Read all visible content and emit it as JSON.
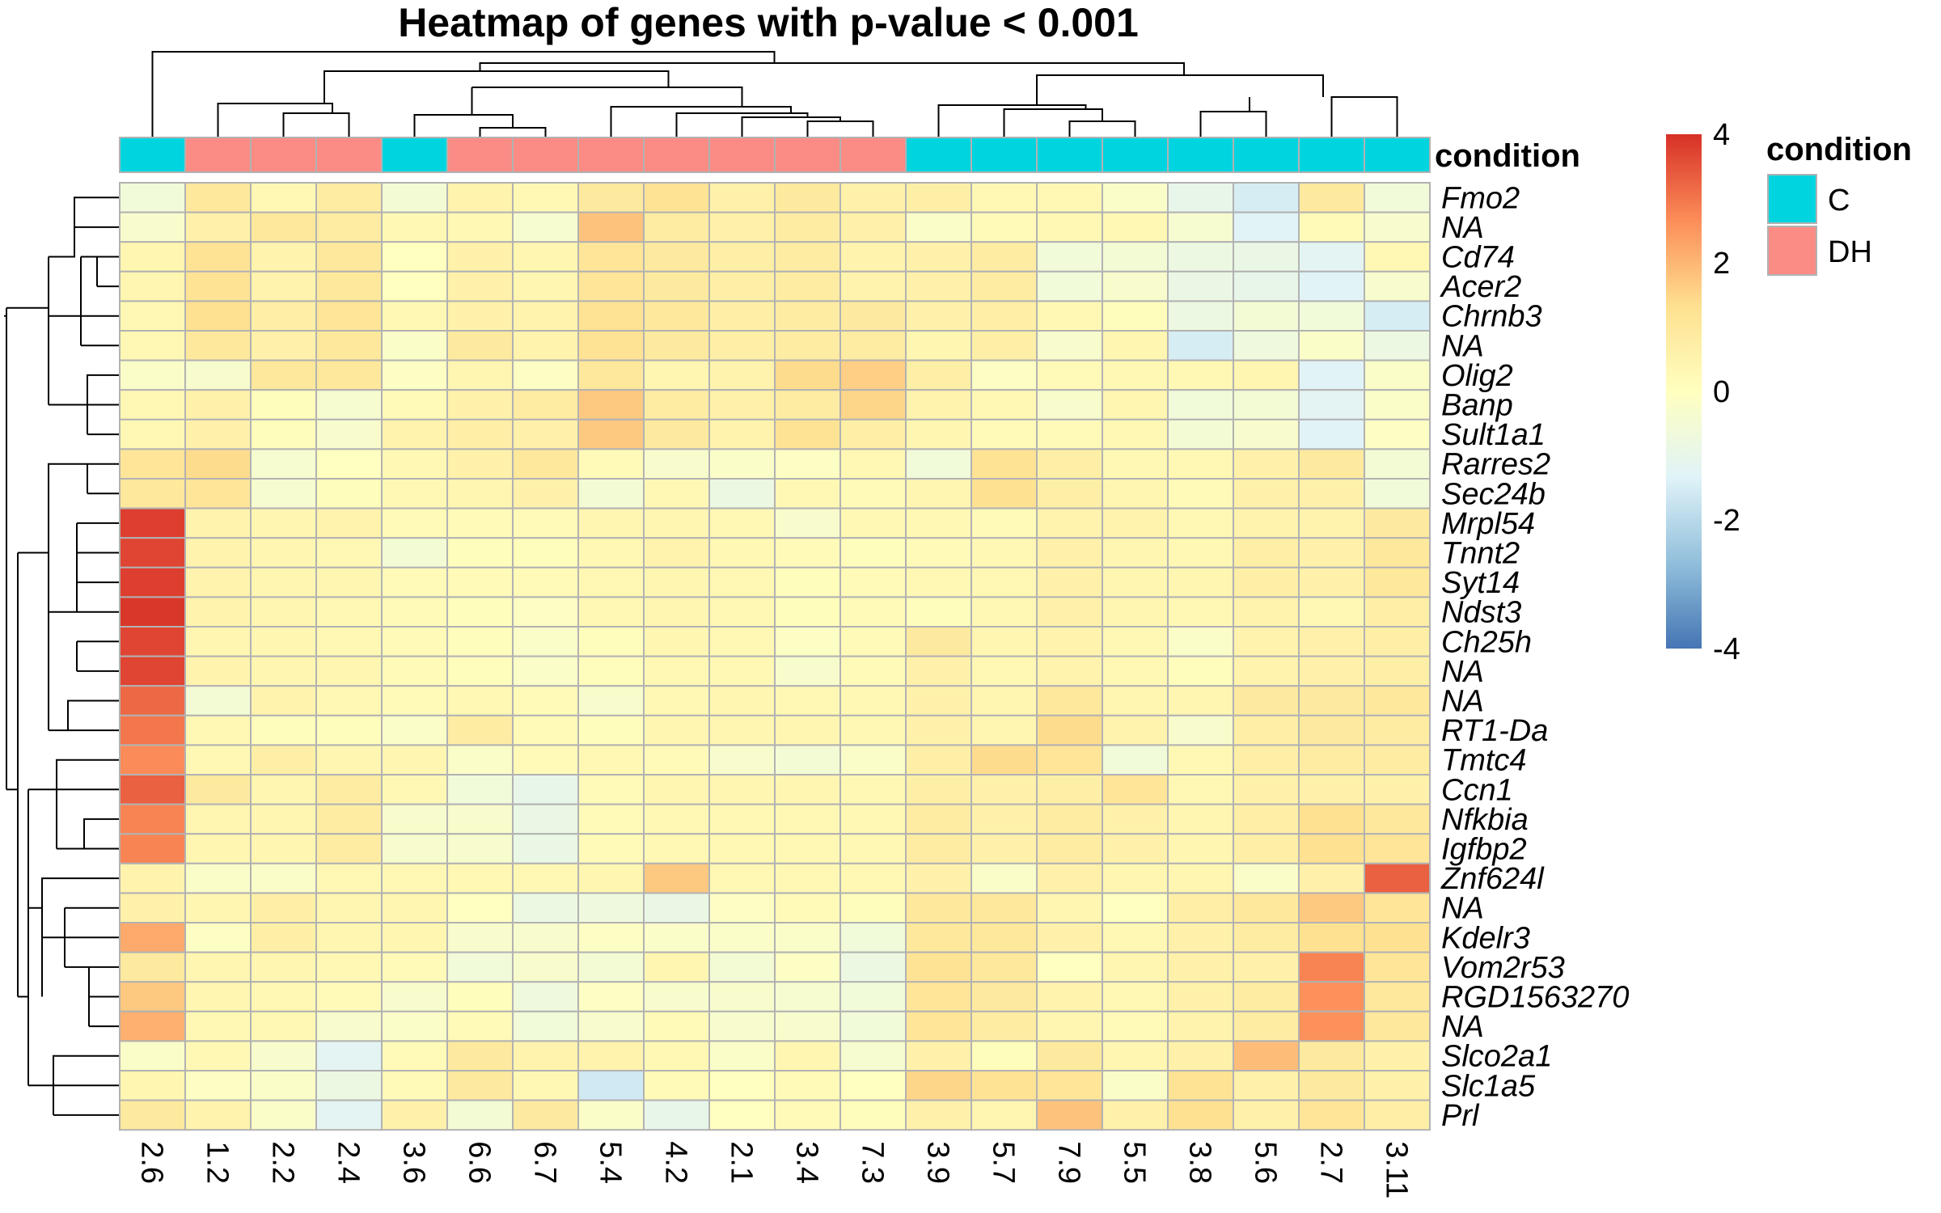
{
  "chart_data": {
    "type": "heatmap",
    "title": "Heatmap of genes with p-value < 0.001",
    "columns": [
      "2.6",
      "1.2",
      "2.2",
      "2.4",
      "3.6",
      "6.6",
      "6.7",
      "5.4",
      "4.2",
      "2.1",
      "3.4",
      "7.3",
      "3.9",
      "5.7",
      "7.9",
      "5.5",
      "3.8",
      "5.6",
      "2.7",
      "3.11"
    ],
    "column_condition": [
      "C",
      "DH",
      "DH",
      "DH",
      "C",
      "DH",
      "DH",
      "DH",
      "DH",
      "DH",
      "DH",
      "DH",
      "C",
      "C",
      "C",
      "C",
      "C",
      "C",
      "C",
      "C"
    ],
    "rows": [
      "Fmo2",
      "NA",
      "Cd74",
      "Acer2",
      "Chrnb3",
      "NA",
      "Olig2",
      "Banp",
      "Sult1a1",
      "Rarres2",
      "Sec24b",
      "Mrpl54",
      "Tnnt2",
      "Syt14",
      "Ndst3",
      "Ch25h",
      "NA",
      "NA",
      "RT1-Da",
      "Tmtc4",
      "Ccn1",
      "Nfkbia",
      "Igfbp2",
      "Znf624l",
      "NA",
      "Kdelr3",
      "Vom2r53",
      "RGD1563270",
      "NA",
      "Slco2a1",
      "Slc1a5",
      "Prl"
    ],
    "values": [
      [
        -0.6,
        1.0,
        0.3,
        0.8,
        -0.5,
        0.5,
        0.3,
        0.9,
        1.2,
        0.6,
        0.9,
        0.6,
        0.7,
        0.3,
        0.3,
        -0.2,
        -1.0,
        -1.5,
        0.9,
        -0.6
      ],
      [
        -0.3,
        0.6,
        1.0,
        0.8,
        0.3,
        0.3,
        -0.4,
        1.8,
        0.8,
        0.6,
        0.8,
        0.6,
        -0.2,
        0.2,
        0.3,
        0.3,
        -0.4,
        -1.3,
        0.2,
        -0.3
      ],
      [
        0.4,
        1.2,
        0.5,
        1.0,
        0.0,
        0.6,
        0.4,
        1.1,
        0.9,
        0.7,
        0.8,
        0.5,
        0.6,
        0.8,
        -0.6,
        -0.5,
        -0.8,
        -0.9,
        -1.2,
        0.3
      ],
      [
        0.4,
        1.2,
        0.5,
        1.0,
        0.0,
        0.6,
        0.4,
        1.1,
        0.9,
        0.7,
        0.8,
        0.5,
        0.6,
        0.8,
        -0.6,
        -0.3,
        -0.9,
        -1.0,
        -1.3,
        -0.3
      ],
      [
        0.3,
        1.3,
        0.7,
        1.1,
        0.3,
        0.6,
        0.5,
        1.2,
        1.0,
        0.7,
        0.8,
        0.9,
        0.6,
        0.7,
        0.3,
        0.1,
        -0.8,
        -0.5,
        -0.6,
        -1.5
      ],
      [
        0.3,
        1.0,
        0.6,
        1.0,
        -0.2,
        0.9,
        0.5,
        1.2,
        0.9,
        0.7,
        0.8,
        0.8,
        0.4,
        0.7,
        -0.3,
        0.4,
        -1.5,
        -0.7,
        -0.2,
        -0.8
      ],
      [
        -0.2,
        -0.3,
        1.0,
        1.0,
        -0.1,
        0.4,
        -0.1,
        1.0,
        0.4,
        0.5,
        1.4,
        1.6,
        0.7,
        -0.1,
        0.2,
        0.3,
        0.3,
        0.4,
        -1.3,
        -0.2
      ],
      [
        0.3,
        0.6,
        0.1,
        -0.4,
        0.2,
        0.6,
        0.8,
        1.7,
        0.8,
        0.6,
        0.8,
        1.5,
        0.5,
        0.3,
        -0.3,
        0.4,
        -0.6,
        -0.5,
        -1.2,
        -0.2
      ],
      [
        0.3,
        0.6,
        0.1,
        -0.3,
        0.5,
        0.7,
        0.6,
        1.7,
        0.9,
        0.5,
        1.2,
        0.7,
        0.4,
        0.2,
        0.2,
        0.3,
        -0.5,
        -0.3,
        -1.3,
        -0.1
      ],
      [
        1.1,
        1.4,
        -0.4,
        0.0,
        0.3,
        0.6,
        1.0,
        0.2,
        -0.3,
        -0.2,
        -0.1,
        0.3,
        -0.6,
        1.2,
        0.7,
        0.3,
        0.3,
        0.6,
        0.9,
        -0.5
      ],
      [
        1.0,
        1.1,
        -0.4,
        0.1,
        0.3,
        0.4,
        0.6,
        -0.5,
        0.3,
        -0.8,
        0.3,
        0.2,
        0.4,
        1.3,
        0.7,
        0.4,
        0.2,
        0.6,
        0.6,
        -0.6
      ],
      [
        3.8,
        0.5,
        0.4,
        0.5,
        0.2,
        0.2,
        0.2,
        0.4,
        0.4,
        0.3,
        -0.3,
        0.3,
        0.3,
        0.2,
        0.5,
        0.5,
        0.3,
        0.5,
        0.5,
        0.9
      ],
      [
        3.7,
        0.5,
        0.4,
        0.3,
        -0.5,
        0.1,
        0.1,
        0.3,
        0.5,
        0.3,
        0.2,
        0.1,
        0.2,
        0.3,
        0.6,
        0.4,
        0.3,
        0.7,
        0.6,
        1.0
      ],
      [
        3.8,
        0.5,
        0.4,
        0.4,
        0.2,
        0.2,
        0.2,
        0.3,
        0.4,
        0.3,
        0.1,
        0.2,
        0.3,
        0.3,
        0.6,
        0.4,
        0.4,
        0.7,
        0.6,
        1.0
      ],
      [
        3.9,
        0.5,
        0.4,
        0.3,
        0.2,
        0.1,
        -0.1,
        0.3,
        0.4,
        0.3,
        0.1,
        0.2,
        0.1,
        0.3,
        0.6,
        0.4,
        0.3,
        0.5,
        0.3,
        0.7
      ],
      [
        3.7,
        0.4,
        0.4,
        0.3,
        0.2,
        0.1,
        -0.2,
        0.1,
        0.4,
        0.3,
        -0.1,
        0.2,
        0.9,
        0.4,
        0.5,
        0.3,
        -0.2,
        0.5,
        0.6,
        0.7
      ],
      [
        3.7,
        0.5,
        0.4,
        0.4,
        0.2,
        0.1,
        -0.2,
        0.1,
        0.3,
        0.3,
        -0.3,
        0.2,
        0.6,
        0.3,
        0.5,
        0.3,
        0.1,
        0.5,
        0.6,
        0.7
      ],
      [
        3.2,
        -0.5,
        0.5,
        0.3,
        0.2,
        0.3,
        0.2,
        -0.3,
        0.3,
        0.4,
        0.3,
        0.3,
        0.6,
        0.4,
        1.0,
        0.4,
        0.4,
        0.9,
        0.9,
        1.0
      ],
      [
        3.0,
        0.3,
        0.1,
        0.1,
        -0.2,
        0.8,
        0.2,
        0.1,
        0.4,
        0.4,
        0.4,
        0.3,
        0.6,
        0.4,
        1.4,
        0.5,
        -0.3,
        0.7,
        0.9,
        0.8
      ],
      [
        2.7,
        0.3,
        0.7,
        0.4,
        0.4,
        -0.2,
        0.2,
        0.3,
        0.2,
        -0.3,
        -0.5,
        -0.2,
        0.7,
        1.4,
        1.1,
        -0.6,
        0.3,
        0.7,
        0.8,
        0.8
      ],
      [
        3.3,
        0.9,
        0.4,
        0.8,
        0.3,
        -0.6,
        -1.0,
        0.2,
        0.4,
        0.4,
        0.4,
        0.3,
        0.7,
        0.6,
        0.7,
        1.1,
        0.3,
        0.6,
        0.6,
        0.6
      ],
      [
        2.8,
        0.4,
        0.4,
        0.8,
        -0.3,
        -0.3,
        -0.9,
        0.2,
        0.3,
        0.3,
        0.3,
        0.3,
        0.8,
        0.6,
        0.8,
        0.6,
        0.4,
        0.7,
        1.3,
        1.0
      ],
      [
        2.8,
        0.4,
        0.4,
        0.8,
        -0.3,
        -0.3,
        -0.9,
        0.2,
        0.3,
        0.3,
        0.3,
        0.3,
        0.8,
        0.6,
        0.8,
        0.6,
        0.4,
        0.7,
        1.3,
        1.1
      ],
      [
        0.5,
        -0.2,
        -0.2,
        0.3,
        0.3,
        0.3,
        0.3,
        0.4,
        1.7,
        0.3,
        0.3,
        0.3,
        0.6,
        -0.2,
        0.6,
        0.4,
        0.4,
        -0.2,
        0.6,
        3.3
      ],
      [
        0.6,
        0.4,
        0.7,
        0.4,
        0.4,
        0.0,
        -0.8,
        -0.7,
        -0.9,
        -0.1,
        0.2,
        0.1,
        1.0,
        1.0,
        0.4,
        0.0,
        0.7,
        1.0,
        1.7,
        1.1
      ],
      [
        2.2,
        -0.1,
        0.7,
        0.4,
        0.4,
        -0.3,
        -0.3,
        -0.1,
        -0.2,
        -0.2,
        -0.2,
        -0.6,
        1.0,
        1.0,
        0.6,
        0.3,
        0.6,
        0.8,
        1.3,
        1.3
      ],
      [
        0.9,
        0.4,
        0.4,
        0.3,
        0.2,
        -0.6,
        -0.3,
        -0.5,
        0.4,
        -0.5,
        -0.1,
        -0.8,
        1.2,
        1.0,
        0.0,
        0.4,
        0.6,
        0.6,
        2.8,
        1.1
      ],
      [
        1.7,
        0.4,
        0.3,
        0.2,
        -0.3,
        0.1,
        -0.7,
        -0.1,
        -0.3,
        -0.3,
        -0.4,
        -0.6,
        1.1,
        0.9,
        0.5,
        0.3,
        0.6,
        0.8,
        2.6,
        1.0
      ],
      [
        2.1,
        0.3,
        0.3,
        -0.3,
        -0.2,
        0.2,
        -0.6,
        -0.3,
        0.2,
        -0.3,
        -0.3,
        -0.6,
        1.1,
        0.8,
        0.4,
        0.2,
        0.5,
        0.8,
        2.6,
        1.0
      ],
      [
        -0.2,
        0.3,
        -0.3,
        -1.2,
        0.2,
        0.9,
        0.5,
        0.5,
        0.3,
        -0.2,
        0.4,
        -0.4,
        0.6,
        0.1,
        0.9,
        0.4,
        0.6,
        1.9,
        0.9,
        0.6
      ],
      [
        0.4,
        -0.1,
        -0.2,
        -0.8,
        0.2,
        0.9,
        0.3,
        -1.6,
        0.2,
        0.0,
        0.2,
        0.0,
        1.5,
        1.2,
        1.1,
        -0.2,
        1.2,
        0.6,
        0.9,
        0.6
      ],
      [
        0.9,
        0.5,
        -0.2,
        -1.2,
        0.6,
        -0.5,
        0.9,
        -0.2,
        -1.0,
        0.0,
        0.2,
        0.1,
        0.6,
        0.4,
        1.8,
        0.6,
        1.3,
        0.6,
        1.1,
        0.7
      ]
    ],
    "color_scale": {
      "min": -4,
      "max": 4,
      "stops": [
        "#4575B4",
        "#91BFDB",
        "#E0F3F8",
        "#FFFFBF",
        "#FEE090",
        "#FC8D59",
        "#D73027"
      ],
      "tick_labels": [
        "4",
        "2",
        "0",
        "-2",
        "-4"
      ]
    },
    "annotation": {
      "name": "condition",
      "levels": [
        {
          "label": "C",
          "color": "#00D5DF"
        },
        {
          "label": "DH",
          "color": "#FA8C85"
        }
      ]
    },
    "dendrogram_cell_color": "#B2B2B2"
  }
}
